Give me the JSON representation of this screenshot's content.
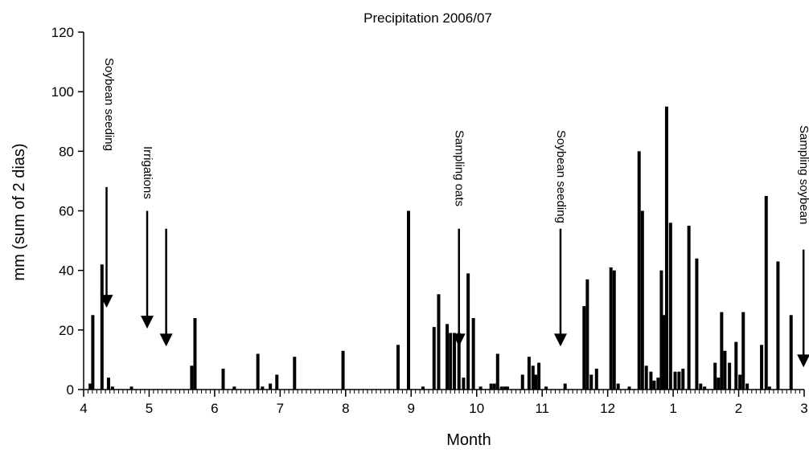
{
  "chart_data": {
    "type": "bar",
    "title": "Precipitation 2006/07",
    "xlabel": "Month",
    "ylabel": "mm (sum of 2 dias)",
    "ylim": [
      0,
      120
    ],
    "yticks": [
      0,
      20,
      40,
      60,
      80,
      100,
      120
    ],
    "xlim": [
      4,
      15
    ],
    "xtick_labels": [
      "4",
      "5",
      "6",
      "7",
      "8",
      "9",
      "10",
      "11",
      "12",
      "1",
      "2",
      "3"
    ],
    "grid": false,
    "legend": "none",
    "bar_color": "#000000",
    "series": [
      {
        "x": [
          4.1,
          4.14,
          4.28,
          4.38,
          4.44,
          4.73,
          5.65,
          5.7,
          6.13,
          6.3,
          6.66,
          6.73,
          6.85,
          6.95,
          7.22,
          7.96,
          8.8,
          8.96,
          9.18,
          9.35,
          9.42,
          9.55,
          9.6,
          9.66,
          9.73,
          9.8,
          9.87,
          9.95,
          10.06,
          10.22,
          10.27,
          10.32,
          10.38,
          10.43,
          10.47,
          10.7,
          10.8,
          10.86,
          10.9,
          10.95,
          11.06,
          11.35,
          11.64,
          11.69,
          11.75,
          11.83,
          12.05,
          12.1,
          12.16,
          12.33,
          12.48,
          12.53,
          12.59,
          12.66,
          12.71,
          12.77,
          12.82,
          12.86,
          12.9,
          12.96,
          13.03,
          13.09,
          13.15,
          13.24,
          13.36,
          13.42,
          13.48,
          13.64,
          13.69,
          13.74,
          13.79,
          13.86,
          13.96,
          14.02,
          14.07,
          14.13,
          14.35,
          14.42,
          14.47,
          14.6,
          14.8
        ],
        "values": [
          2,
          25,
          42,
          4,
          1,
          1,
          8,
          24,
          7,
          1,
          12,
          1,
          2,
          5,
          11,
          13,
          15,
          60,
          1,
          21,
          32,
          22,
          19,
          19,
          19,
          4,
          39,
          24,
          1,
          2,
          2,
          12,
          1,
          1,
          1,
          5,
          11,
          8,
          5,
          9,
          1,
          2,
          28,
          37,
          5,
          7,
          41,
          40,
          2,
          1,
          80,
          60,
          8,
          6,
          3,
          4,
          40,
          25,
          95,
          56,
          6,
          6,
          7,
          55,
          44,
          2,
          1,
          9,
          4,
          26,
          13,
          9,
          16,
          5,
          26,
          2,
          15,
          65,
          1,
          43,
          25
        ]
      }
    ],
    "annotations": [
      {
        "text": "Soybean seeding",
        "x": 4.35,
        "y_top": 68,
        "y_tip": 28
      },
      {
        "text": "Irrigations",
        "x": 4.97,
        "y_top": 60,
        "y_tip": 21
      },
      {
        "text": "",
        "x": 5.26,
        "y_top": 54,
        "y_tip": 15
      },
      {
        "text": "Sampling oats",
        "x": 9.73,
        "y_top": 54,
        "y_tip": 15
      },
      {
        "text": "Soybean seeding",
        "x": 11.28,
        "y_top": 54,
        "y_tip": 15
      },
      {
        "text": "Sampling soybean",
        "x": 14.99,
        "y_top": 47,
        "y_tip": 8
      }
    ]
  }
}
